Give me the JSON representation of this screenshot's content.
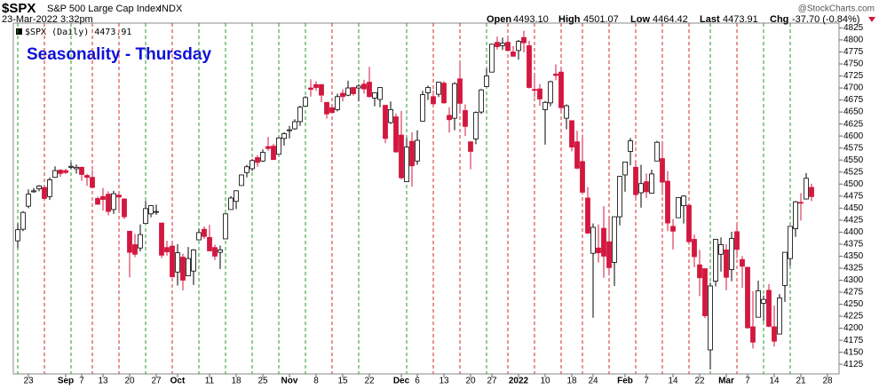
{
  "chart_data": {
    "type": "candlestick",
    "symbol": "$SPX",
    "name": "S&P 500 Large Cap Index",
    "exchange": "INDX",
    "date": "23-Mar-2022 3:32pm",
    "quote": {
      "open_label": "Open",
      "open": "4493.10",
      "high_label": "High",
      "high": "4501.07",
      "low_label": "Low",
      "low": "4464.42",
      "last_label": "Last",
      "last": "4473.91",
      "chg_label": "Chg",
      "chg": "-37.70 (-0.84%)"
    },
    "watermark": "@StockCharts.com",
    "legend": "$SPX (Daily) 4473.91",
    "title": "Seasonality - Thursday",
    "up_color": "#ffffff",
    "down_color": "#d3173f",
    "thursday_up_color": "#2a9a2a",
    "thursday_down_color": "#d62a2a",
    "ylim": [
      4105,
      4835
    ],
    "yticks": [
      4125,
      4150,
      4175,
      4200,
      4225,
      4250,
      4275,
      4300,
      4325,
      4350,
      4375,
      4400,
      4425,
      4450,
      4475,
      4500,
      4525,
      4550,
      4575,
      4600,
      4625,
      4650,
      4675,
      4700,
      4725,
      4750,
      4775,
      4800,
      4825
    ],
    "categories": [
      null,
      null,
      "23",
      null,
      null,
      null,
      null,
      null,
      null,
      "Sep",
      null,
      null,
      "7",
      null,
      null,
      null,
      "13",
      null,
      null,
      null,
      null,
      "20",
      null,
      null,
      null,
      null,
      "27",
      null,
      null,
      null,
      "Oct",
      null,
      null,
      null,
      null,
      null,
      "11",
      null,
      null,
      null,
      null,
      "18",
      null,
      null,
      null,
      null,
      "25",
      null,
      null,
      null,
      null,
      "Nov",
      null,
      null,
      null,
      null,
      "8",
      null,
      null,
      null,
      null,
      "15",
      null,
      null,
      null,
      null,
      "22",
      null,
      null,
      null,
      null,
      null,
      "Dec",
      null,
      null,
      "6",
      null,
      null,
      null,
      null,
      "13",
      null,
      null,
      null,
      null,
      "20",
      null,
      null,
      null,
      "27",
      null,
      null,
      null,
      null,
      "2022",
      null,
      null,
      null,
      null,
      "10",
      null,
      null,
      null,
      null,
      "18",
      null,
      null,
      null,
      "24",
      null,
      null,
      null,
      null,
      null,
      "Feb",
      null,
      null,
      null,
      "7",
      null,
      null,
      null,
      null,
      "14",
      null,
      null,
      null,
      null,
      "22",
      null,
      null,
      null,
      null,
      "Mar",
      null,
      null,
      null,
      "7",
      null,
      null,
      null,
      null,
      "14",
      null,
      null,
      null,
      null,
      "21",
      null,
      null,
      null,
      null,
      "28",
      null,
      null
    ],
    "open": [
      4382,
      4406,
      4454,
      4484,
      4490,
      4493,
      4474,
      4514,
      4529,
      4528,
      4535,
      4532,
      4535,
      4518,
      4514,
      4470,
      4474,
      4479,
      4447,
      4477,
      4469,
      4402,
      4374,
      4367,
      4418,
      4438,
      4442,
      4419,
      4368,
      4371,
      4317,
      4348,
      4309,
      4319,
      4384,
      4406,
      4389,
      4368,
      4358,
      4386,
      4447,
      4464,
      4497,
      4524,
      4532,
      4555,
      4548,
      4578,
      4579,
      4562,
      4595,
      4611,
      4615,
      4630,
      4662,
      4700,
      4707,
      4707,
      4670,
      4659,
      4655,
      4689,
      4685,
      4701,
      4700,
      4708,
      4712,
      4679,
      4676,
      4664,
      4628,
      4640,
      4602,
      4505,
      4589,
      4548,
      4631,
      4690,
      4682,
      4687,
      4710,
      4643,
      4637,
      4719,
      4653,
      4588,
      4594,
      4650,
      4703,
      4733,
      4795,
      4788,
      4795,
      4775,
      4778,
      4805,
      4788,
      4697,
      4698,
      4655,
      4669,
      4729,
      4733,
      4637,
      4632,
      4588,
      4547,
      4471,
      4356,
      4367,
      4408,
      4380,
      4337,
      4432,
      4519,
      4568,
      4535,
      4482,
      4505,
      4481,
      4548,
      4553,
      4506,
      4412,
      4430,
      4455,
      4456,
      4385,
      4332,
      4324,
      4155,
      4298,
      4354,
      4363,
      4322,
      4401,
      4343,
      4327,
      4203,
      4223,
      4252,
      4279,
      4203,
      4188,
      4289,
      4345,
      4407,
      4462,
      4469,
      4493.1,
      null,
      null,
      null,
      null,
      null
    ],
    "high": [
      4418,
      4444,
      4489,
      4492,
      4498,
      4495,
      4514,
      4537,
      4531,
      4532,
      4545,
      4541,
      4536,
      4521,
      4529,
      4474,
      4492,
      4485,
      4486,
      4485,
      4471,
      4402,
      4396,
      4416,
      4465,
      4456,
      4457,
      4419,
      4382,
      4382,
      4375,
      4355,
      4369,
      4365,
      4407,
      4412,
      4415,
      4374,
      4372,
      4439,
      4475,
      4487,
      4520,
      4540,
      4552,
      4560,
      4572,
      4598,
      4584,
      4598,
      4608,
      4621,
      4635,
      4663,
      4683,
      4718,
      4714,
      4708,
      4670,
      4664,
      4688,
      4697,
      4715,
      4701,
      4708,
      4717,
      4744,
      4691,
      4702,
      4664,
      4672,
      4647,
      4652,
      4596,
      4608,
      4612,
      4694,
      4705,
      4695,
      4713,
      4714,
      4660,
      4712,
      4752,
      4666,
      4589,
      4651,
      4698,
      4740,
      4792,
      4807,
      4805,
      4809,
      4787,
      4800,
      4819,
      4798,
      4725,
      4708,
      4673,
      4715,
      4749,
      4744,
      4666,
      4632,
      4611,
      4603,
      4494,
      4418,
      4416,
      4454,
      4429,
      4432,
      4517,
      4546,
      4596,
      4543,
      4540,
      4522,
      4530,
      4590,
      4589,
      4527,
      4427,
      4473,
      4477,
      4456,
      4395,
      4363,
      4324,
      4295,
      4385,
      4389,
      4375,
      4401,
      4416,
      4350,
      4327,
      4277,
      4299,
      4268,
      4292,
      4247,
      4271,
      4358,
      4412,
      4465,
      4481,
      4523,
      4501.07,
      null,
      null,
      null,
      null,
      null
    ],
    "low": [
      4367,
      4402,
      4450,
      4482,
      4485,
      4468,
      4467,
      4513,
      4515,
      4521,
      4531,
      4522,
      4507,
      4496,
      4493,
      4457,
      4445,
      4435,
      4438,
      4444,
      4427,
      4306,
      4348,
      4360,
      4418,
      4431,
      4436,
      4346,
      4351,
      4306,
      4289,
      4279,
      4309,
      4290,
      4384,
      4386,
      4360,
      4342,
      4323,
      4386,
      4447,
      4448,
      4497,
      4514,
      4527,
      4536,
      4546,
      4569,
      4551,
      4562,
      4580,
      4595,
      4613,
      4621,
      4662,
      4682,
      4694,
      4670,
      4636,
      4646,
      4651,
      4672,
      4683,
      4684,
      4672,
      4688,
      4680,
      4662,
      4660,
      4585,
      4625,
      4565,
      4510,
      4504,
      4495,
      4540,
      4631,
      4675,
      4665,
      4681,
      4667,
      4607,
      4612,
      4651,
      4600,
      4531,
      4583,
      4646,
      4703,
      4733,
      4780,
      4779,
      4776,
      4765,
      4759,
      4774,
      4699,
      4681,
      4663,
      4582,
      4662,
      4716,
      4651,
      4614,
      4568,
      4531,
      4483,
      4396,
      4222,
      4337,
      4305,
      4310,
      4288,
      4414,
      4484,
      4539,
      4470,
      4451,
      4471,
      4480,
      4548,
      4477,
      4402,
      4364,
      4430,
      4418,
      4374,
      4327,
      4267,
      4221,
      4114,
      4287,
      4318,
      4279,
      4298,
      4346,
      4284,
      4199,
      4158,
      4223,
      4215,
      4202,
      4162,
      4187,
      4255,
      4330,
      4390,
      4424,
      4468,
      4464.42,
      null,
      null,
      null,
      null,
      null
    ],
    "close": [
      4405,
      4441,
      4479,
      4486,
      4496,
      4470,
      4509,
      4528,
      4522,
      4524,
      4537,
      4535,
      4520,
      4514,
      4493,
      4458,
      4468,
      4443,
      4480,
      4473,
      4432,
      4358,
      4354,
      4395,
      4449,
      4455,
      4443,
      4352,
      4359,
      4307,
      4357,
      4300,
      4345,
      4363,
      4399,
      4391,
      4361,
      4350,
      4363,
      4438,
      4471,
      4486,
      4519,
      4536,
      4549,
      4545,
      4566,
      4574,
      4551,
      4596,
      4605,
      4613,
      4630,
      4660,
      4680,
      4697,
      4701,
      4685,
      4646,
      4649,
      4682,
      4682,
      4700,
      4688,
      4704,
      4698,
      4682,
      4690,
      4701,
      4595,
      4655,
      4567,
      4513,
      4577,
      4538,
      4591,
      4686,
      4701,
      4667,
      4712,
      4669,
      4634,
      4709,
      4668,
      4620,
      4568,
      4649,
      4696,
      4725,
      4791,
      4786,
      4793,
      4778,
      4766,
      4797,
      4794,
      4701,
      4696,
      4677,
      4670,
      4713,
      4726,
      4659,
      4663,
      4577,
      4533,
      4483,
      4398,
      4410,
      4357,
      4350,
      4326,
      4432,
      4516,
      4546,
      4590,
      4478,
      4501,
      4484,
      4521,
      4587,
      4504,
      4419,
      4402,
      4472,
      4475,
      4380,
      4349,
      4305,
      4226,
      4288,
      4385,
      4374,
      4306,
      4387,
      4364,
      4329,
      4201,
      4171,
      4278,
      4260,
      4204,
      4173,
      4263,
      4358,
      4412,
      4463,
      4461,
      4512,
      4473.91,
      null,
      null,
      null,
      null,
      null
    ]
  }
}
